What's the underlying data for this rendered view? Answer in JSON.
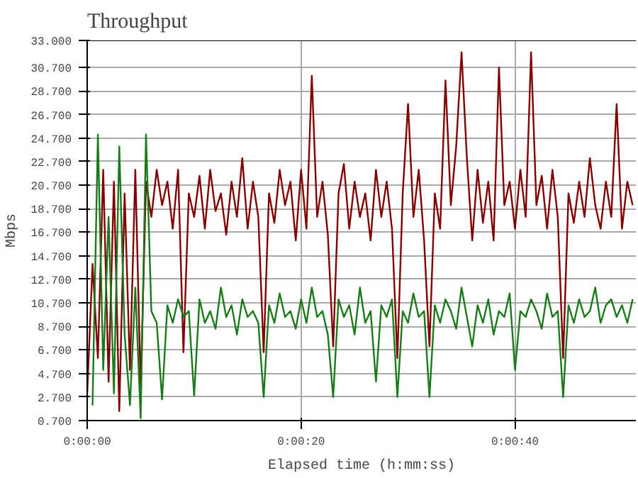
{
  "chart_data": {
    "type": "line",
    "title": "Throughput",
    "xlabel": "Elapsed time (h:mm:ss)",
    "ylabel": "Mbps",
    "x": [
      0,
      0.5,
      1,
      1.5,
      2,
      2.5,
      3,
      3.5,
      4,
      4.5,
      5,
      5.5,
      6,
      6.5,
      7,
      7.5,
      8,
      8.5,
      9,
      9.5,
      10,
      10.5,
      11,
      11.5,
      12,
      12.5,
      13,
      13.5,
      14,
      14.5,
      15,
      15.5,
      16,
      16.5,
      17,
      17.5,
      18,
      18.5,
      19,
      19.5,
      20,
      20.5,
      21,
      21.5,
      22,
      22.5,
      23,
      23.5,
      24,
      24.5,
      25,
      25.5,
      26,
      26.5,
      27,
      27.5,
      28,
      28.5,
      29,
      29.5,
      30,
      30.5,
      31,
      31.5,
      32,
      32.5,
      33,
      33.5,
      34,
      34.5,
      35,
      35.5,
      36,
      36.5,
      37,
      37.5,
      38,
      38.5,
      39,
      39.5,
      40,
      40.5,
      41,
      41.5,
      42,
      42.5,
      43,
      43.5,
      44,
      44.5,
      45,
      45.5,
      46,
      46.5,
      47,
      47.5,
      48,
      48.5,
      49,
      49.5,
      50,
      50.5,
      51
    ],
    "series": [
      {
        "color": "#800000",
        "values": [
          3,
          14,
          6,
          22,
          4,
          21,
          1.5,
          20,
          5,
          22,
          3.5,
          21,
          18,
          22,
          19,
          21,
          17,
          22,
          6.5,
          20,
          18,
          21.5,
          17,
          22,
          18.5,
          20,
          16.5,
          21,
          18,
          23,
          17,
          21,
          18,
          6.5,
          20,
          17.5,
          22,
          19,
          21,
          16,
          22,
          17,
          30,
          18,
          21,
          16.5,
          7,
          20,
          22.5,
          17,
          21,
          18,
          20,
          16,
          22,
          18,
          21,
          17,
          6,
          20,
          27.6,
          18,
          22,
          16,
          7,
          20,
          17,
          29.6,
          19,
          24,
          32,
          23,
          16,
          22,
          17.5,
          21,
          16,
          30.7,
          19,
          21,
          17,
          22,
          18,
          32,
          19,
          21.5,
          17,
          22,
          18,
          6,
          20,
          17.5,
          21,
          18,
          23,
          19,
          17,
          21,
          18,
          27.6,
          17,
          21,
          19
        ]
      },
      {
        "color": "#1a7a1a",
        "values": [
          null,
          2,
          25,
          5,
          18,
          3,
          24,
          8,
          2,
          12,
          0.9,
          25,
          10,
          9,
          2.5,
          10.5,
          9,
          11,
          9.5,
          10,
          2.8,
          11,
          9,
          10,
          8.5,
          12,
          9.5,
          10.5,
          8,
          11,
          9.5,
          10,
          9,
          2.7,
          10.5,
          9,
          11.5,
          9.5,
          10,
          8.5,
          11,
          9,
          12,
          9.5,
          10,
          8,
          2.7,
          11,
          9.5,
          10.5,
          8,
          12,
          9,
          10,
          4,
          10.5,
          9.5,
          11,
          2.7,
          10,
          9,
          11.5,
          9.5,
          10,
          2.7,
          10.5,
          9,
          11,
          10,
          8.5,
          12,
          9.5,
          7,
          10.5,
          9,
          11,
          8,
          10,
          9.5,
          11.5,
          5,
          10,
          9.5,
          11,
          10,
          8.5,
          11.5,
          9.5,
          10,
          2.7,
          10.5,
          9,
          11,
          9.5,
          10,
          12,
          9,
          10.5,
          11,
          9.5,
          10.5,
          9,
          11
        ]
      }
    ],
    "xlim": [
      0,
      51.3
    ],
    "xticks": [
      {
        "value": 0,
        "label": "0:00:00"
      },
      {
        "value": 20,
        "label": "0:00:20"
      },
      {
        "value": 40,
        "label": "0:00:40"
      }
    ],
    "ylim": [
      0.7,
      33
    ],
    "yticks": [
      {
        "value": 0.7,
        "label": "0.700"
      },
      {
        "value": 2.7,
        "label": "2.700"
      },
      {
        "value": 4.7,
        "label": "4.700"
      },
      {
        "value": 6.7,
        "label": "6.700"
      },
      {
        "value": 8.7,
        "label": "8.700"
      },
      {
        "value": 10.7,
        "label": "10.700"
      },
      {
        "value": 12.7,
        "label": "12.700"
      },
      {
        "value": 14.7,
        "label": "14.700"
      },
      {
        "value": 16.7,
        "label": "16.700"
      },
      {
        "value": 18.7,
        "label": "18.700"
      },
      {
        "value": 20.7,
        "label": "20.700"
      },
      {
        "value": 22.7,
        "label": "22.700"
      },
      {
        "value": 24.7,
        "label": "24.700"
      },
      {
        "value": 26.7,
        "label": "26.700"
      },
      {
        "value": 28.7,
        "label": "28.700"
      },
      {
        "value": 30.7,
        "label": "30.700"
      },
      {
        "value": 33,
        "label": "33.000"
      }
    ],
    "grid": true
  }
}
